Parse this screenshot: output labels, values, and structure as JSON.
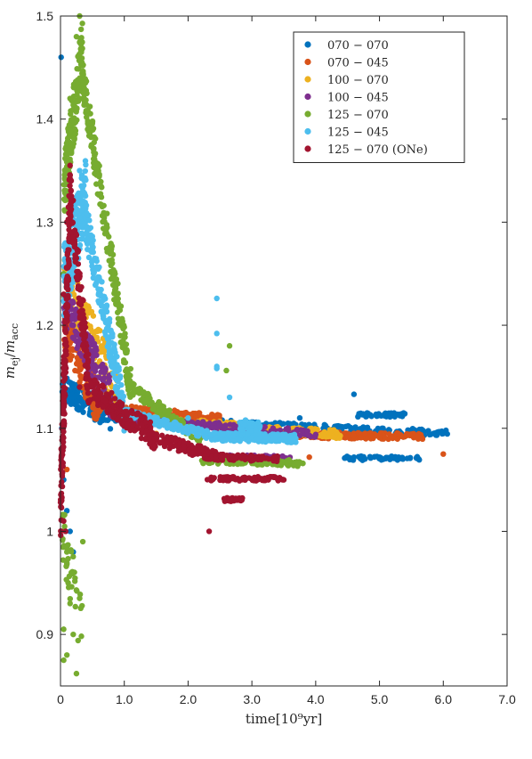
{
  "chart_data": {
    "type": "scatter",
    "xlabel": "time[10⁹yr]",
    "ylabel": "m_ej/m_acc",
    "xlim": [
      0,
      7
    ],
    "ylim": [
      0.85,
      1.5
    ],
    "x_ticks": [
      0,
      1,
      2,
      3,
      4,
      5,
      6,
      7
    ],
    "x_tick_labels": [
      "0",
      "1.0",
      "2.0",
      "3.0",
      "4.0",
      "5.0",
      "6.0",
      "7.0"
    ],
    "y_ticks": [
      0.9,
      1.0,
      1.1,
      1.2,
      1.3,
      1.4,
      1.5
    ],
    "y_tick_labels": [
      "0.9",
      "1",
      "1.1",
      "1.2",
      "1.3",
      "1.4",
      "1.5"
    ],
    "legend_position": "top-right",
    "grid": false,
    "series": [
      {
        "name": "070 − 070",
        "color": "#0072BD",
        "points": [
          [
            0.01,
            1.46
          ],
          [
            0.02,
            1.1
          ],
          [
            0.05,
            1.05
          ],
          [
            0.1,
            1.02
          ],
          [
            0.15,
            1.0
          ],
          [
            0.2,
            0.98
          ],
          [
            0.3,
            1.13
          ],
          [
            0.5,
            1.12
          ],
          [
            0.8,
            1.12
          ],
          [
            1.2,
            1.11
          ],
          [
            1.8,
            1.105
          ],
          [
            2.5,
            1.1
          ],
          [
            3.0,
            1.098
          ],
          [
            3.5,
            1.097
          ],
          [
            3.75,
            1.11
          ],
          [
            4.0,
            1.096
          ],
          [
            4.6,
            1.133
          ],
          [
            4.5,
            1.095
          ],
          [
            5.0,
            1.095
          ],
          [
            5.5,
            1.095
          ],
          [
            6.0,
            1.095
          ],
          [
            4.8,
            1.113
          ],
          [
            5.1,
            1.113
          ],
          [
            4.6,
            1.072
          ],
          [
            5.0,
            1.072
          ],
          [
            5.3,
            1.072
          ]
        ],
        "bands": [
          {
            "x": [
              0.02,
              0.8
            ],
            "y": [
              1.14,
              1.11
            ],
            "noise": 0.012,
            "n": 160
          },
          {
            "x": [
              0.8,
              6.1
            ],
            "y": [
              1.11,
              1.095
            ],
            "noise": 0.003,
            "n": 260
          },
          {
            "x": [
              4.65,
              5.4
            ],
            "y": [
              1.113,
              1.113
            ],
            "noise": 0.002,
            "n": 50
          },
          {
            "x": [
              4.45,
              5.7
            ],
            "y": [
              1.071,
              1.071
            ],
            "noise": 0.002,
            "n": 60
          }
        ]
      },
      {
        "name": "070 − 045",
        "color": "#D95319",
        "points": [
          [
            0.1,
            1.06
          ],
          [
            0.3,
            1.16
          ],
          [
            1.5,
            1.11
          ],
          [
            2.4,
            1.11
          ],
          [
            3.5,
            1.094
          ],
          [
            3.9,
            1.072
          ],
          [
            4.2,
            1.09
          ],
          [
            4.5,
            1.092
          ],
          [
            5.0,
            1.092
          ],
          [
            5.6,
            1.092
          ],
          [
            6.0,
            1.075
          ]
        ],
        "bands": [
          {
            "x": [
              0.05,
              0.6
            ],
            "y": [
              1.2,
              1.12
            ],
            "noise": 0.02,
            "n": 120
          },
          {
            "x": [
              0.6,
              2.5
            ],
            "y": [
              1.12,
              1.11
            ],
            "noise": 0.004,
            "n": 140
          },
          {
            "x": [
              3.3,
              5.7
            ],
            "y": [
              1.094,
              1.092
            ],
            "noise": 0.003,
            "n": 200
          }
        ]
      },
      {
        "name": "100 − 070",
        "color": "#EDB120",
        "points": [
          [
            0.1,
            1.22
          ],
          [
            0.4,
            1.2
          ],
          [
            0.6,
            1.15
          ],
          [
            1.5,
            1.095
          ],
          [
            2.5,
            1.094
          ],
          [
            3.8,
            1.094
          ],
          [
            4.2,
            1.092
          ]
        ],
        "bands": [
          {
            "x": [
              0.05,
              0.9
            ],
            "y": [
              1.25,
              1.13
            ],
            "noise": 0.025,
            "n": 160
          },
          {
            "x": [
              0.9,
              4.4
            ],
            "y": [
              1.11,
              1.094
            ],
            "noise": 0.004,
            "n": 200
          }
        ]
      },
      {
        "name": "100 − 045",
        "color": "#7E2F8E",
        "points": [
          [
            0.2,
            1.2
          ],
          [
            0.5,
            1.14
          ],
          [
            1.0,
            1.11
          ],
          [
            2.0,
            1.099
          ],
          [
            3.0,
            1.096
          ],
          [
            3.6,
            1.094
          ],
          [
            4.0,
            1.094
          ],
          [
            3.2,
            1.07
          ]
        ],
        "bands": [
          {
            "x": [
              0.05,
              0.8
            ],
            "y": [
              1.22,
              1.13
            ],
            "noise": 0.02,
            "n": 140
          },
          {
            "x": [
              0.8,
              4.0
            ],
            "y": [
              1.11,
              1.094
            ],
            "noise": 0.004,
            "n": 180
          },
          {
            "x": [
              2.3,
              3.6
            ],
            "y": [
              1.072,
              1.07
            ],
            "noise": 0.003,
            "n": 60
          }
        ]
      },
      {
        "name": "125 − 070",
        "color": "#77AC30",
        "points": [
          [
            0.3,
            1.5
          ],
          [
            0.25,
            1.48
          ],
          [
            0.15,
            1.42
          ],
          [
            0.05,
            1.25
          ],
          [
            0.1,
            0.98
          ],
          [
            0.12,
            0.95
          ],
          [
            0.15,
            0.93
          ],
          [
            0.2,
            0.9
          ],
          [
            0.1,
            0.88
          ],
          [
            0.05,
            0.875
          ],
          [
            0.25,
            0.862
          ],
          [
            0.05,
            0.905
          ],
          [
            0.3,
            0.935
          ],
          [
            0.1,
            0.968
          ],
          [
            0.35,
            0.99
          ],
          [
            2.65,
            1.18
          ],
          [
            2.6,
            1.156
          ],
          [
            3.0,
            1.068
          ],
          [
            3.8,
            1.066
          ]
        ],
        "bands": [
          {
            "x": [
              0.05,
              0.35
            ],
            "y": [
              1.33,
              1.47
            ],
            "noise": 0.03,
            "n": 160
          },
          {
            "x": [
              0.35,
              1.1
            ],
            "y": [
              1.44,
              1.14
            ],
            "noise": 0.02,
            "n": 220
          },
          {
            "x": [
              1.1,
              2.2
            ],
            "y": [
              1.14,
              1.09
            ],
            "noise": 0.006,
            "n": 110
          },
          {
            "x": [
              2.2,
              3.8
            ],
            "y": [
              1.069,
              1.066
            ],
            "noise": 0.003,
            "n": 110
          },
          {
            "x": [
              0.02,
              0.35
            ],
            "y": [
              1.0,
              0.9
            ],
            "noise": 0.03,
            "n": 40
          }
        ]
      },
      {
        "name": "125 − 045",
        "color": "#4DBEEE",
        "points": [
          [
            2.45,
            1.226
          ],
          [
            2.45,
            1.192
          ],
          [
            2.45,
            1.16
          ],
          [
            2.45,
            1.158
          ],
          [
            2.65,
            1.13
          ],
          [
            2.0,
            1.11
          ],
          [
            2.9,
            1.108
          ],
          [
            0.3,
            1.35
          ],
          [
            0.35,
            1.33
          ]
        ],
        "bands": [
          {
            "x": [
              0.05,
              0.4
            ],
            "y": [
              1.24,
              1.33
            ],
            "noise": 0.035,
            "n": 180
          },
          {
            "x": [
              0.4,
              1.0
            ],
            "y": [
              1.3,
              1.115
            ],
            "noise": 0.02,
            "n": 180
          },
          {
            "x": [
              1.0,
              2.4
            ],
            "y": [
              1.115,
              1.092
            ],
            "noise": 0.004,
            "n": 160
          },
          {
            "x": [
              2.4,
              3.7
            ],
            "y": [
              1.092,
              1.09
            ],
            "noise": 0.004,
            "n": 180
          },
          {
            "x": [
              2.8,
              3.15
            ],
            "y": [
              1.1,
              1.1
            ],
            "noise": 0.006,
            "n": 50
          }
        ]
      },
      {
        "name": "125 − 070 (ONe)",
        "color": "#A2142F",
        "points": [
          [
            0.15,
            1.355
          ],
          [
            0.1,
            1.3
          ],
          [
            0.05,
            1.23
          ],
          [
            0.08,
            1.0
          ],
          [
            0.05,
            1.01
          ],
          [
            2.33,
            1.0
          ],
          [
            0.3,
            1.14
          ],
          [
            3.5,
            1.05
          ]
        ],
        "bands": [
          {
            "x": [
              0.0,
              0.15
            ],
            "y": [
              1.02,
              1.33
            ],
            "noise": 0.04,
            "n": 180
          },
          {
            "x": [
              0.15,
              0.45
            ],
            "y": [
              1.33,
              1.14
            ],
            "noise": 0.025,
            "n": 120
          },
          {
            "x": [
              0.45,
              1.5
            ],
            "y": [
              1.14,
              1.09
            ],
            "noise": 0.012,
            "n": 180
          },
          {
            "x": [
              1.5,
              2.5
            ],
            "y": [
              1.09,
              1.072
            ],
            "noise": 0.006,
            "n": 110
          },
          {
            "x": [
              2.5,
              3.4
            ],
            "y": [
              1.072,
              1.07
            ],
            "noise": 0.003,
            "n": 70
          },
          {
            "x": [
              2.3,
              3.5
            ],
            "y": [
              1.051,
              1.051
            ],
            "noise": 0.002,
            "n": 80
          },
          {
            "x": [
              2.55,
              2.85
            ],
            "y": [
              1.031,
              1.031
            ],
            "noise": 0.002,
            "n": 30
          }
        ]
      }
    ]
  }
}
